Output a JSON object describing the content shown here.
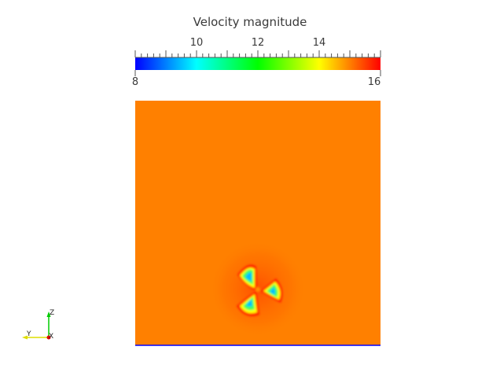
{
  "colorbar": {
    "title": "Velocity magnitude",
    "min_label": "8",
    "max_label": "16",
    "major_labels": [
      "10",
      "12",
      "14"
    ],
    "range": [
      8,
      16
    ],
    "colormap": [
      "#0000ff",
      "#00ffff",
      "#00ff00",
      "#ffff00",
      "#ff0000"
    ]
  },
  "field": {
    "background_color": "#ff8000",
    "wake_colors": {
      "inner": "#00b4ff",
      "mid": "#40ff60",
      "ring": "#ffff00",
      "halo": "#ff2000"
    },
    "bottom_edge_color": "#0000ff",
    "blade_count": 3
  },
  "axes": {
    "z_label": "Z",
    "y_label": "Y",
    "x_label": "X"
  }
}
